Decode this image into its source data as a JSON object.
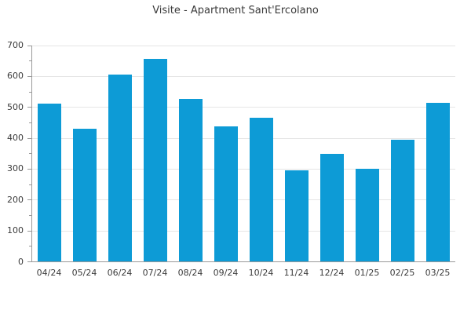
{
  "chart_data": {
    "type": "bar",
    "title": "Visite - Apartment Sant'Ercolano",
    "categories": [
      "04/24",
      "05/24",
      "06/24",
      "07/24",
      "08/24",
      "09/24",
      "10/24",
      "11/24",
      "12/24",
      "01/25",
      "02/25",
      "03/25"
    ],
    "values": [
      510,
      430,
      605,
      655,
      527,
      437,
      465,
      295,
      348,
      300,
      395,
      513
    ],
    "xlabel": "",
    "ylabel": "",
    "ylim": [
      0,
      700
    ],
    "ytick_interval": 100,
    "yminor_tick_interval": 50,
    "ytick_labels": [
      "0",
      "100",
      "200",
      "300",
      "400",
      "500",
      "600",
      "700"
    ],
    "grid": "horizontal",
    "legend_position": "none",
    "colors": {
      "bar": "#0d9bd6",
      "gridline": "#e5e5e5",
      "axis": "#999999",
      "tick": "#999999",
      "text": "#3a3a3a"
    }
  }
}
